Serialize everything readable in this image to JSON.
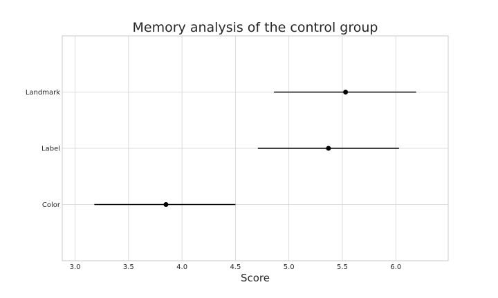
{
  "chart_data": {
    "type": "scatter",
    "title": "Memory analysis of the control group",
    "xlabel": "Score",
    "ylabel": "",
    "xlim": [
      2.88,
      6.49
    ],
    "xticks": [
      "3.0",
      "3.5",
      "4.0",
      "4.5",
      "5.0",
      "5.5",
      "6.0"
    ],
    "categories": [
      "Landmark",
      "Label",
      "Color"
    ],
    "means": [
      5.53,
      5.37,
      3.85
    ],
    "ci_low": [
      4.86,
      4.71,
      3.18
    ],
    "ci_high": [
      6.19,
      6.03,
      4.5
    ],
    "grid": true,
    "colors": {
      "marker": "#000000",
      "grid": "#d3d3d3",
      "frame": "#c8c8c8"
    }
  }
}
